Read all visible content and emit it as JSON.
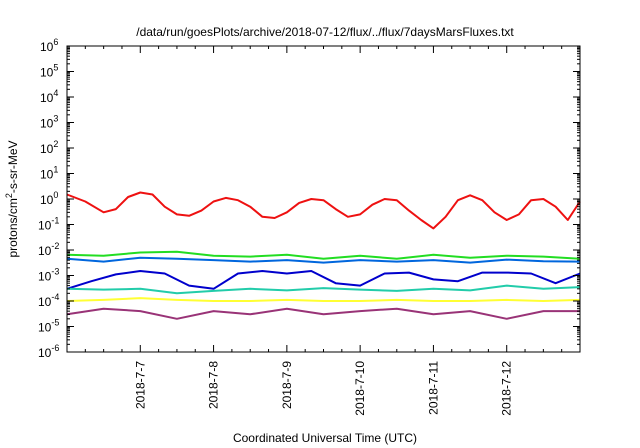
{
  "chart_data": {
    "type": "line",
    "title": "/data/run/goesPlots/archive/2018-07-12/flux/../flux/7daysMarsFluxes.txt",
    "xlabel": "Coordinated Universal Time (UTC)",
    "ylabel_parts": [
      "protons/cm",
      "2",
      "-s-sr-MeV"
    ],
    "yscale": "log",
    "ylim": [
      1e-06,
      1000000.0
    ],
    "xlim": [
      "2018-07-06T00:00",
      "2018-07-13T00:00"
    ],
    "y_ticks": [
      {
        "base": "10",
        "exp": "-6",
        "value": 1e-06
      },
      {
        "base": "10",
        "exp": "-5",
        "value": 1e-05
      },
      {
        "base": "10",
        "exp": "-4",
        "value": 0.0001
      },
      {
        "base": "10",
        "exp": "-3",
        "value": 0.001
      },
      {
        "base": "10",
        "exp": "-2",
        "value": 0.01
      },
      {
        "base": "10",
        "exp": "-1",
        "value": 0.1
      },
      {
        "base": "10",
        "exp": "0",
        "value": 1
      },
      {
        "base": "10",
        "exp": "1",
        "value": 10
      },
      {
        "base": "10",
        "exp": "2",
        "value": 100
      },
      {
        "base": "10",
        "exp": "3",
        "value": 1000
      },
      {
        "base": "10",
        "exp": "4",
        "value": 10000
      },
      {
        "base": "10",
        "exp": "5",
        "value": 100000
      },
      {
        "base": "10",
        "exp": "6",
        "value": 1000000
      }
    ],
    "x_ticks": [
      {
        "label": "2018-7-7",
        "x": "2018-07-07T00:00"
      },
      {
        "label": "2018-7-8",
        "x": "2018-07-08T00:00"
      },
      {
        "label": "2018-7-9",
        "x": "2018-07-09T00:00"
      },
      {
        "label": "2018-7-10",
        "x": "2018-07-10T00:00"
      },
      {
        "label": "2018-7-11",
        "x": "2018-07-11T00:00"
      },
      {
        "label": "2018-7-12",
        "x": "2018-07-12T00:00"
      }
    ],
    "grid": false,
    "series": [
      {
        "color": "#ee1111",
        "x": [
          "2018-07-06T00:00",
          "2018-07-06T06:00",
          "2018-07-06T12:00",
          "2018-07-06T16:00",
          "2018-07-06T20:00",
          "2018-07-07T00:00",
          "2018-07-07T04:00",
          "2018-07-07T08:00",
          "2018-07-07T12:00",
          "2018-07-07T16:00",
          "2018-07-07T20:00",
          "2018-07-08T00:00",
          "2018-07-08T04:00",
          "2018-07-08T08:00",
          "2018-07-08T12:00",
          "2018-07-08T16:00",
          "2018-07-08T20:00",
          "2018-07-09T00:00",
          "2018-07-09T04:00",
          "2018-07-09T08:00",
          "2018-07-09T12:00",
          "2018-07-09T16:00",
          "2018-07-09T20:00",
          "2018-07-10T00:00",
          "2018-07-10T04:00",
          "2018-07-10T08:00",
          "2018-07-10T12:00",
          "2018-07-10T16:00",
          "2018-07-10T20:00",
          "2018-07-11T00:00",
          "2018-07-11T04:00",
          "2018-07-11T08:00",
          "2018-07-11T12:00",
          "2018-07-11T16:00",
          "2018-07-11T20:00",
          "2018-07-12T00:00",
          "2018-07-12T04:00",
          "2018-07-12T08:00",
          "2018-07-12T12:00",
          "2018-07-12T16:00",
          "2018-07-12T20:00",
          "2018-07-13T00:00"
        ],
        "values": [
          1.5,
          0.8,
          0.3,
          0.4,
          1.2,
          1.8,
          1.5,
          0.5,
          0.25,
          0.22,
          0.35,
          0.8,
          1.1,
          0.9,
          0.5,
          0.2,
          0.18,
          0.3,
          0.7,
          1.0,
          0.9,
          0.4,
          0.2,
          0.25,
          0.6,
          1.0,
          0.9,
          0.35,
          0.15,
          0.07,
          0.2,
          0.9,
          1.4,
          0.9,
          0.3,
          0.15,
          0.25,
          0.9,
          1.0,
          0.5,
          0.15,
          0.8
        ]
      },
      {
        "color": "#22dd22",
        "x": [
          "2018-07-06T00:00",
          "2018-07-06T12:00",
          "2018-07-07T00:00",
          "2018-07-07T12:00",
          "2018-07-08T00:00",
          "2018-07-08T12:00",
          "2018-07-09T00:00",
          "2018-07-09T12:00",
          "2018-07-10T00:00",
          "2018-07-10T12:00",
          "2018-07-11T00:00",
          "2018-07-11T12:00",
          "2018-07-12T00:00",
          "2018-07-12T12:00",
          "2018-07-13T00:00"
        ],
        "values": [
          0.0065,
          0.006,
          0.008,
          0.0085,
          0.006,
          0.0055,
          0.0065,
          0.0045,
          0.006,
          0.0045,
          0.0065,
          0.005,
          0.006,
          0.0055,
          0.0045
        ]
      },
      {
        "color": "#0066dd",
        "x": [
          "2018-07-06T00:00",
          "2018-07-06T12:00",
          "2018-07-07T00:00",
          "2018-07-07T12:00",
          "2018-07-08T00:00",
          "2018-07-08T12:00",
          "2018-07-09T00:00",
          "2018-07-09T12:00",
          "2018-07-10T00:00",
          "2018-07-10T12:00",
          "2018-07-11T00:00",
          "2018-07-11T12:00",
          "2018-07-12T00:00",
          "2018-07-12T12:00",
          "2018-07-13T00:00"
        ],
        "values": [
          0.0045,
          0.0035,
          0.005,
          0.0045,
          0.004,
          0.0035,
          0.004,
          0.0032,
          0.004,
          0.0035,
          0.004,
          0.0032,
          0.0042,
          0.0036,
          0.0035
        ]
      },
      {
        "color": "#0000cc",
        "x": [
          "2018-07-06T00:00",
          "2018-07-06T08:00",
          "2018-07-06T16:00",
          "2018-07-07T00:00",
          "2018-07-07T08:00",
          "2018-07-07T16:00",
          "2018-07-08T00:00",
          "2018-07-08T08:00",
          "2018-07-08T16:00",
          "2018-07-09T00:00",
          "2018-07-09T08:00",
          "2018-07-09T16:00",
          "2018-07-10T00:00",
          "2018-07-10T08:00",
          "2018-07-10T16:00",
          "2018-07-11T00:00",
          "2018-07-11T08:00",
          "2018-07-11T16:00",
          "2018-07-12T00:00",
          "2018-07-12T08:00",
          "2018-07-12T16:00",
          "2018-07-13T00:00"
        ],
        "values": [
          0.0003,
          0.0006,
          0.0011,
          0.0015,
          0.0012,
          0.0004,
          0.0003,
          0.0012,
          0.0015,
          0.0012,
          0.0015,
          0.0005,
          0.0004,
          0.0012,
          0.0013,
          0.0007,
          0.0006,
          0.0013,
          0.0013,
          0.0012,
          0.0005,
          0.0012
        ]
      },
      {
        "color": "#22ccaa",
        "x": [
          "2018-07-06T00:00",
          "2018-07-06T12:00",
          "2018-07-07T00:00",
          "2018-07-07T12:00",
          "2018-07-08T00:00",
          "2018-07-08T12:00",
          "2018-07-09T00:00",
          "2018-07-09T12:00",
          "2018-07-10T00:00",
          "2018-07-10T12:00",
          "2018-07-11T00:00",
          "2018-07-11T12:00",
          "2018-07-12T00:00",
          "2018-07-12T12:00",
          "2018-07-13T00:00"
        ],
        "values": [
          0.0003,
          0.00028,
          0.0003,
          0.0002,
          0.00025,
          0.0003,
          0.00026,
          0.00032,
          0.00028,
          0.00025,
          0.0003,
          0.00026,
          0.0004,
          0.0003,
          0.00035
        ]
      },
      {
        "color": "#ffff33",
        "x": [
          "2018-07-06T00:00",
          "2018-07-06T12:00",
          "2018-07-07T00:00",
          "2018-07-07T12:00",
          "2018-07-08T00:00",
          "2018-07-08T12:00",
          "2018-07-09T00:00",
          "2018-07-09T12:00",
          "2018-07-10T00:00",
          "2018-07-10T12:00",
          "2018-07-11T00:00",
          "2018-07-11T12:00",
          "2018-07-12T00:00",
          "2018-07-12T12:00",
          "2018-07-13T00:00"
        ],
        "values": [
          0.0001,
          0.00011,
          0.00013,
          0.00011,
          0.0001,
          0.0001,
          0.00011,
          0.0001,
          0.0001,
          0.00011,
          0.0001,
          0.0001,
          0.00011,
          0.0001,
          0.00011
        ]
      },
      {
        "color": "#993377",
        "x": [
          "2018-07-06T00:00",
          "2018-07-06T12:00",
          "2018-07-07T00:00",
          "2018-07-07T12:00",
          "2018-07-08T00:00",
          "2018-07-08T12:00",
          "2018-07-09T00:00",
          "2018-07-09T12:00",
          "2018-07-10T00:00",
          "2018-07-10T12:00",
          "2018-07-11T00:00",
          "2018-07-11T12:00",
          "2018-07-12T00:00",
          "2018-07-12T12:00",
          "2018-07-13T00:00"
        ],
        "values": [
          3e-05,
          5e-05,
          4e-05,
          2e-05,
          4e-05,
          3e-05,
          5e-05,
          3e-05,
          4e-05,
          5e-05,
          3e-05,
          4e-05,
          2e-05,
          4e-05,
          4e-05
        ]
      }
    ]
  }
}
